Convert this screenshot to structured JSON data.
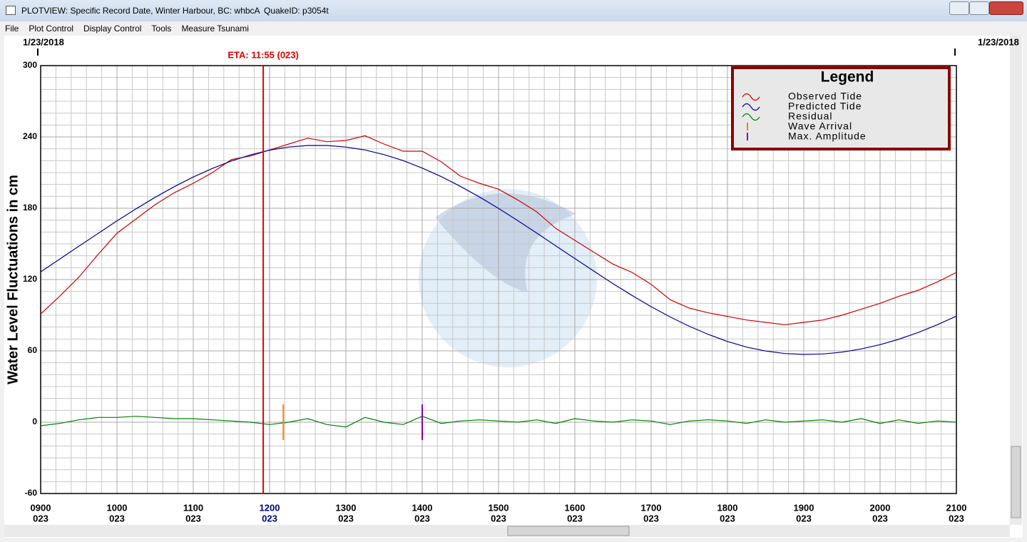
{
  "window": {
    "title": "PLOTVIEW: Specific Record Date, Winter Harbour, BC: whbcA",
    "quake_id": "QuakeID: p3054t",
    "menu": [
      "File",
      "Plot Control",
      "Display Control",
      "Tools",
      "Measure Tsunami"
    ]
  },
  "chart_data": {
    "type": "line",
    "y_label": "Water Level Fluctuations in cm",
    "date_labels": [
      "1/23/2018",
      "1/23/2018"
    ],
    "legend_title": "Legend",
    "xlim": [
      9,
      21
    ],
    "ylim": [
      -60,
      300
    ],
    "yticks": [
      -60,
      0,
      60,
      120,
      180,
      240,
      300
    ],
    "xticks": [
      {
        "value": 9,
        "label": "0900",
        "sublabel": "023"
      },
      {
        "value": 10,
        "label": "1000",
        "sublabel": "023"
      },
      {
        "value": 11,
        "label": "1100",
        "sublabel": "023"
      },
      {
        "value": 12,
        "label": "1200",
        "sublabel": "023",
        "color": "#000080"
      },
      {
        "value": 13,
        "label": "1300",
        "sublabel": "023"
      },
      {
        "value": 14,
        "label": "1400",
        "sublabel": "023"
      },
      {
        "value": 15,
        "label": "1500",
        "sublabel": "023"
      },
      {
        "value": 16,
        "label": "1600",
        "sublabel": "023"
      },
      {
        "value": 17,
        "label": "1700",
        "sublabel": "023"
      },
      {
        "value": 18,
        "label": "1800",
        "sublabel": "023"
      },
      {
        "value": 19,
        "label": "1900",
        "sublabel": "023"
      },
      {
        "value": 20,
        "label": "2000",
        "sublabel": "023"
      },
      {
        "value": 21,
        "label": "2100",
        "sublabel": "023"
      }
    ],
    "grid": true,
    "minor_divisions": {
      "x": 5,
      "y": 6
    },
    "x": [
      9,
      9.25,
      9.5,
      9.75,
      10,
      10.25,
      10.5,
      10.75,
      11,
      11.25,
      11.5,
      11.75,
      12,
      12.25,
      12.5,
      12.75,
      13,
      13.25,
      13.5,
      13.75,
      14,
      14.25,
      14.5,
      14.75,
      15,
      15.25,
      15.5,
      15.75,
      16,
      16.25,
      16.5,
      16.75,
      17,
      17.25,
      17.5,
      17.75,
      18,
      18.25,
      18.5,
      18.75,
      19,
      19.25,
      19.5,
      19.75,
      20,
      20.25,
      20.5,
      20.75,
      21
    ],
    "series": [
      {
        "name": "Observed Tide",
        "color": "#d00000",
        "values": [
          91,
          106,
          122,
          141,
          159,
          171,
          183,
          193,
          201,
          210,
          221,
          224,
          229,
          234,
          239,
          236,
          237,
          241,
          234,
          228,
          228,
          219,
          207,
          201,
          196,
          187,
          177,
          163,
          153,
          143,
          133,
          126,
          116,
          103,
          96,
          92,
          89,
          86,
          84,
          82,
          84,
          86,
          90,
          95,
          100,
          106,
          111,
          118,
          126
        ]
      },
      {
        "name": "Predicted Tide",
        "color": "#000090",
        "values": [
          126.5,
          137.2,
          148.0,
          158.7,
          169.3,
          179.5,
          189.2,
          198.1,
          206.3,
          213.5,
          219.8,
          224.9,
          228.9,
          231.5,
          232.8,
          232.8,
          231.5,
          229.0,
          225.1,
          220.1,
          213.8,
          206.6,
          198.4,
          189.5,
          179.9,
          169.7,
          159.2,
          148.4,
          137.7,
          127.0,
          116.6,
          106.6,
          97.2,
          88.5,
          80.7,
          73.8,
          67.9,
          63.2,
          59.9,
          57.8,
          57.0,
          57.4,
          58.9,
          61.6,
          65.2,
          69.9,
          75.5,
          82.0,
          89.2
        ]
      },
      {
        "name": "Residual",
        "color": "#008000",
        "values": [
          -3,
          -1,
          2,
          4,
          4,
          5,
          4,
          3,
          3,
          2,
          1,
          0,
          -2,
          0,
          3,
          -2,
          -4,
          4,
          0,
          -2,
          5,
          -1,
          1,
          2,
          1,
          0,
          2,
          -1,
          3,
          1,
          0,
          2,
          1,
          -2,
          1,
          2,
          1,
          -1,
          2,
          0,
          1,
          2,
          0,
          3,
          -1,
          2,
          -1,
          1,
          0
        ]
      }
    ],
    "eta": {
      "label": "ETA: 11:55 (023)",
      "x": 11.917,
      "color": "#e00000"
    },
    "vlines": [
      {
        "x": 12.0,
        "color": "#9090d0"
      }
    ],
    "events": [
      {
        "name": "Wave Arrival",
        "color": "#ff8000",
        "x": 12.18,
        "range": [
          -15,
          15
        ]
      },
      {
        "name": "Max. Amplitude",
        "color": "#9000a0",
        "x": 14.0,
        "range": [
          -15,
          15
        ]
      }
    ]
  }
}
